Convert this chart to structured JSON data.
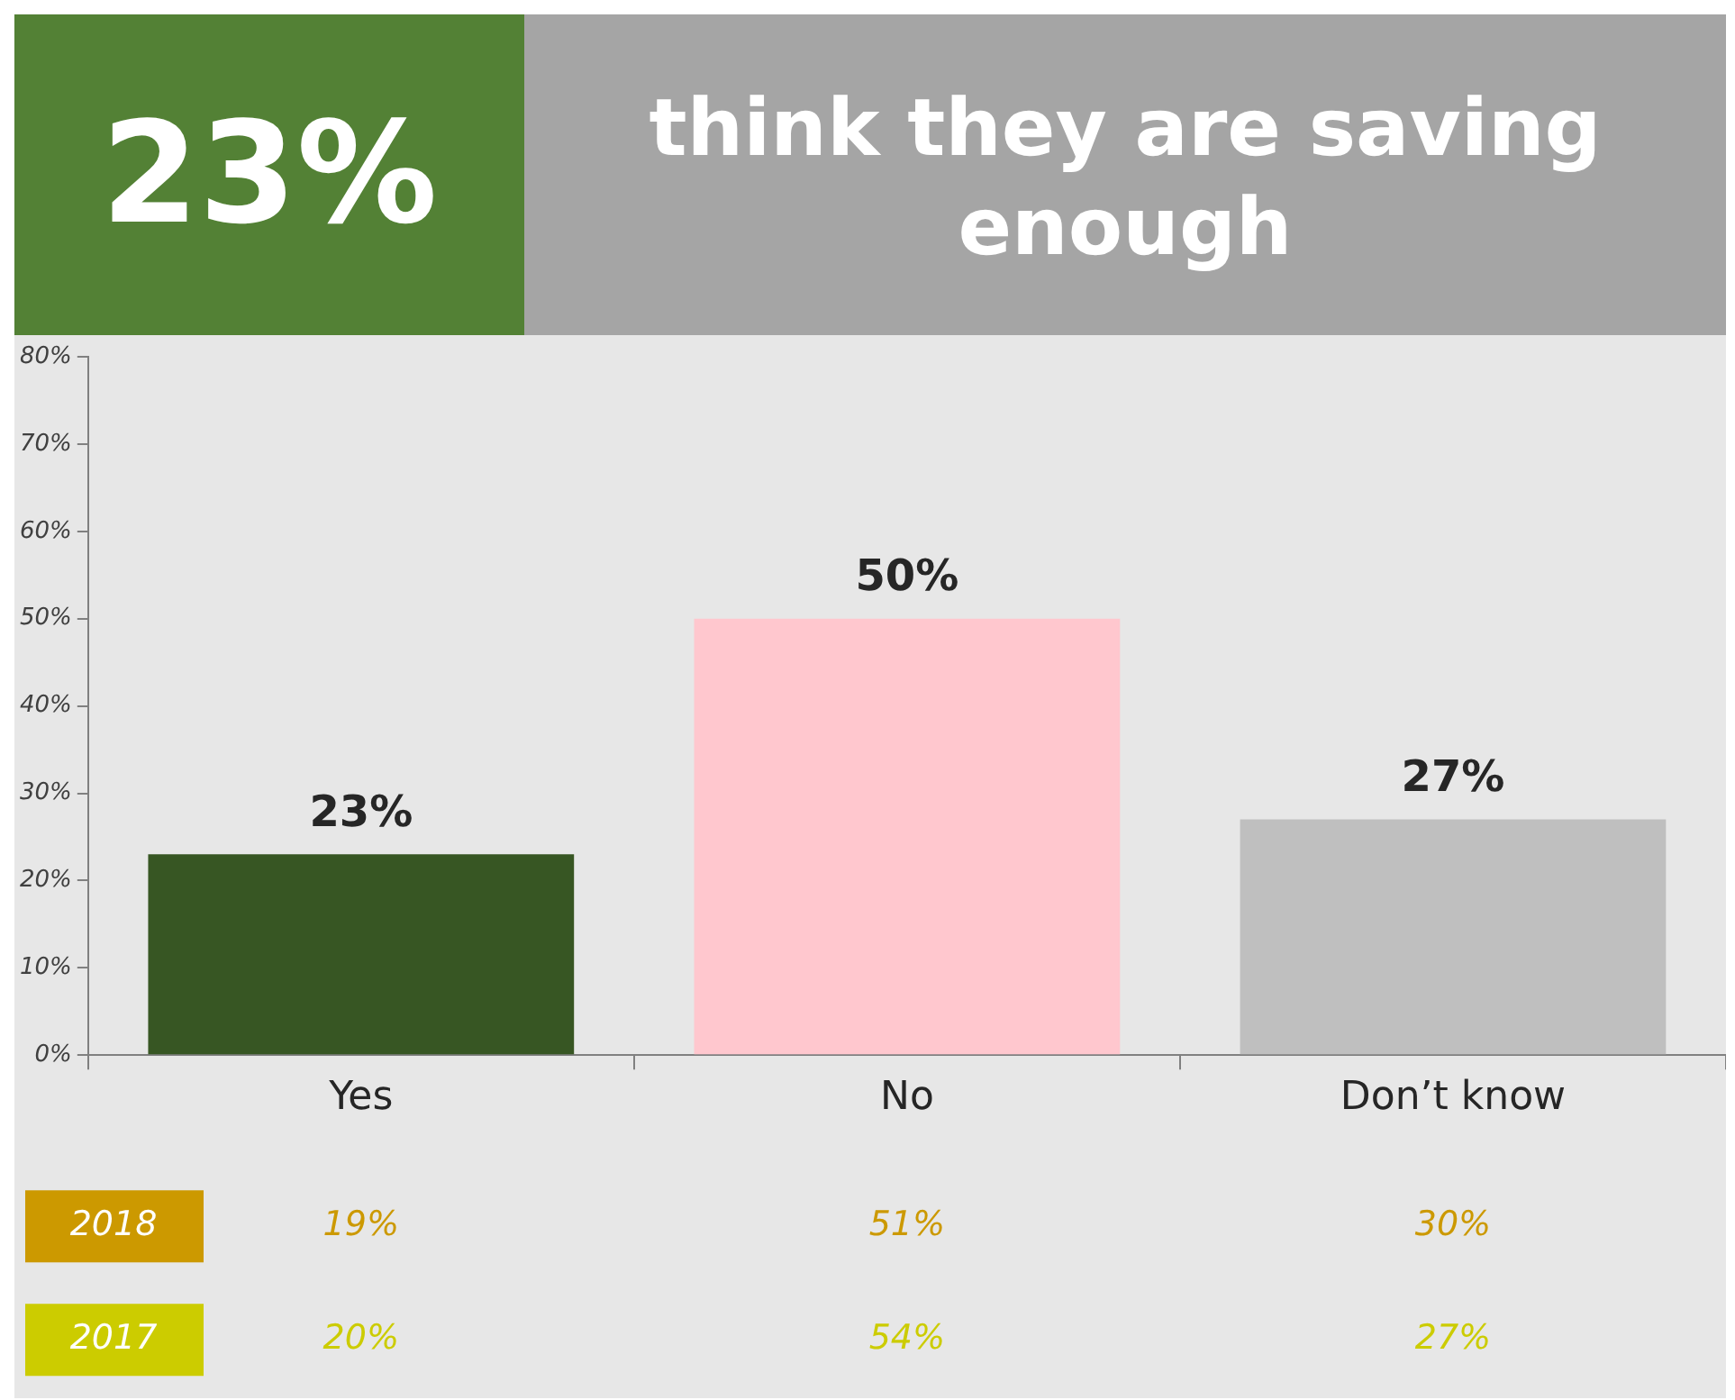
{
  "chart_data": {
    "type": "bar",
    "title": "think they are saving enough",
    "annotations": [
      "23%",
      "2018",
      "19%",
      "51%",
      "30%",
      "2017",
      "20%",
      "54%",
      "27%"
    ],
    "categories": [
      "Yes",
      "No",
      "Don’t know"
    ],
    "colors": [
      "#375623",
      "#ffc7ce",
      "#bfbfbf"
    ],
    "values": [
      23,
      50,
      27
    ],
    "value_labels": [
      "23%",
      "50%",
      "27%"
    ],
    "ylim": [
      0,
      80
    ],
    "yticks": [
      {
        "value": 0,
        "label": "0%"
      },
      {
        "value": 10,
        "label": "10%"
      },
      {
        "value": 20,
        "label": "20%"
      },
      {
        "value": 30,
        "label": "30%"
      },
      {
        "value": 40,
        "label": "40%"
      },
      {
        "value": 50,
        "label": "50%"
      },
      {
        "value": 60,
        "label": "60%"
      },
      {
        "value": 70,
        "label": "70%"
      },
      {
        "value": 80,
        "label": "80%"
      }
    ],
    "grid": false,
    "legend": false
  }
}
